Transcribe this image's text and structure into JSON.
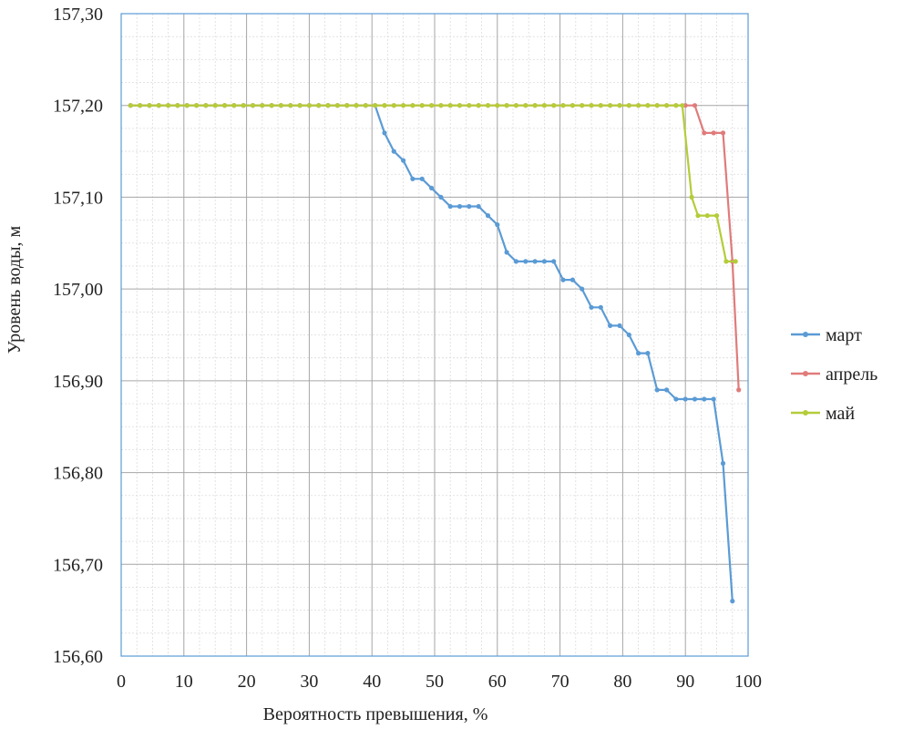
{
  "chart_data": {
    "type": "line",
    "title": "",
    "xlabel": "Вероятность превышения, %",
    "ylabel": "Уровень воды, м",
    "xlim": [
      0,
      100
    ],
    "ylim": [
      156.6,
      157.3
    ],
    "x_ticks": [
      0,
      10,
      20,
      30,
      40,
      50,
      60,
      70,
      80,
      90,
      100
    ],
    "x_tick_labels": [
      "0",
      "10",
      "20",
      "30",
      "40",
      "50",
      "60",
      "70",
      "80",
      "90",
      "100"
    ],
    "y_ticks": [
      156.6,
      156.7,
      156.8,
      156.9,
      157.0,
      157.1,
      157.2,
      157.3
    ],
    "y_tick_labels": [
      "156,60",
      "156,70",
      "156,80",
      "156,90",
      "157,00",
      "157,10",
      "157,20",
      "157,30"
    ],
    "grid": true,
    "legend_position": "right",
    "series": [
      {
        "name": "март",
        "color": "#5b9bd5",
        "points": [
          [
            1.5,
            157.2
          ],
          [
            3,
            157.2
          ],
          [
            4.5,
            157.2
          ],
          [
            6,
            157.2
          ],
          [
            7.5,
            157.2
          ],
          [
            9,
            157.2
          ],
          [
            10.5,
            157.2
          ],
          [
            12,
            157.2
          ],
          [
            13.5,
            157.2
          ],
          [
            15,
            157.2
          ],
          [
            16.5,
            157.2
          ],
          [
            18,
            157.2
          ],
          [
            19.5,
            157.2
          ],
          [
            21,
            157.2
          ],
          [
            22.5,
            157.2
          ],
          [
            24,
            157.2
          ],
          [
            25.5,
            157.2
          ],
          [
            27,
            157.2
          ],
          [
            28.5,
            157.2
          ],
          [
            30,
            157.2
          ],
          [
            31.5,
            157.2
          ],
          [
            33,
            157.2
          ],
          [
            34.5,
            157.2
          ],
          [
            36,
            157.2
          ],
          [
            37.5,
            157.2
          ],
          [
            39,
            157.2
          ],
          [
            40.5,
            157.2
          ],
          [
            42,
            157.17
          ],
          [
            43.5,
            157.15
          ],
          [
            45,
            157.14
          ],
          [
            46.5,
            157.12
          ],
          [
            48,
            157.12
          ],
          [
            49.5,
            157.11
          ],
          [
            51,
            157.1
          ],
          [
            52.5,
            157.09
          ],
          [
            54,
            157.09
          ],
          [
            55.5,
            157.09
          ],
          [
            57,
            157.09
          ],
          [
            58.5,
            157.08
          ],
          [
            60,
            157.07
          ],
          [
            61.5,
            157.04
          ],
          [
            63,
            157.03
          ],
          [
            64.5,
            157.03
          ],
          [
            66,
            157.03
          ],
          [
            67.5,
            157.03
          ],
          [
            69,
            157.03
          ],
          [
            70.5,
            157.01
          ],
          [
            72,
            157.01
          ],
          [
            73.5,
            157.0
          ],
          [
            75,
            156.98
          ],
          [
            76.5,
            156.98
          ],
          [
            78,
            156.96
          ],
          [
            79.5,
            156.96
          ],
          [
            81,
            156.95
          ],
          [
            82.5,
            156.93
          ],
          [
            84,
            156.93
          ],
          [
            85.5,
            156.89
          ],
          [
            87,
            156.89
          ],
          [
            88.5,
            156.88
          ],
          [
            90,
            156.88
          ],
          [
            91.5,
            156.88
          ],
          [
            93,
            156.88
          ],
          [
            94.5,
            156.88
          ],
          [
            96,
            156.81
          ],
          [
            97.5,
            156.66
          ]
        ]
      },
      {
        "name": "апрель",
        "color": "#e07b7b",
        "points": [
          [
            1.5,
            157.2
          ],
          [
            3,
            157.2
          ],
          [
            4.5,
            157.2
          ],
          [
            6,
            157.2
          ],
          [
            7.5,
            157.2
          ],
          [
            9,
            157.2
          ],
          [
            10.5,
            157.2
          ],
          [
            12,
            157.2
          ],
          [
            13.5,
            157.2
          ],
          [
            15,
            157.2
          ],
          [
            16.5,
            157.2
          ],
          [
            18,
            157.2
          ],
          [
            19.5,
            157.2
          ],
          [
            21,
            157.2
          ],
          [
            22.5,
            157.2
          ],
          [
            24,
            157.2
          ],
          [
            25.5,
            157.2
          ],
          [
            27,
            157.2
          ],
          [
            28.5,
            157.2
          ],
          [
            30,
            157.2
          ],
          [
            31.5,
            157.2
          ],
          [
            33,
            157.2
          ],
          [
            34.5,
            157.2
          ],
          [
            36,
            157.2
          ],
          [
            37.5,
            157.2
          ],
          [
            39,
            157.2
          ],
          [
            40.5,
            157.2
          ],
          [
            42,
            157.2
          ],
          [
            43.5,
            157.2
          ],
          [
            45,
            157.2
          ],
          [
            46.5,
            157.2
          ],
          [
            48,
            157.2
          ],
          [
            49.5,
            157.2
          ],
          [
            51,
            157.2
          ],
          [
            52.5,
            157.2
          ],
          [
            54,
            157.2
          ],
          [
            55.5,
            157.2
          ],
          [
            57,
            157.2
          ],
          [
            58.5,
            157.2
          ],
          [
            60,
            157.2
          ],
          [
            61.5,
            157.2
          ],
          [
            63,
            157.2
          ],
          [
            64.5,
            157.2
          ],
          [
            66,
            157.2
          ],
          [
            67.5,
            157.2
          ],
          [
            69,
            157.2
          ],
          [
            70.5,
            157.2
          ],
          [
            72,
            157.2
          ],
          [
            73.5,
            157.2
          ],
          [
            75,
            157.2
          ],
          [
            76.5,
            157.2
          ],
          [
            78,
            157.2
          ],
          [
            79.5,
            157.2
          ],
          [
            81,
            157.2
          ],
          [
            82.5,
            157.2
          ],
          [
            84,
            157.2
          ],
          [
            85.5,
            157.2
          ],
          [
            87,
            157.2
          ],
          [
            88.5,
            157.2
          ],
          [
            90,
            157.2
          ],
          [
            91.5,
            157.2
          ],
          [
            93,
            157.17
          ],
          [
            94.5,
            157.17
          ],
          [
            96,
            157.17
          ],
          [
            97.5,
            157.03
          ],
          [
            98.5,
            156.89
          ]
        ]
      },
      {
        "name": "май",
        "color": "#b5cc3a",
        "points": [
          [
            1.5,
            157.2
          ],
          [
            3,
            157.2
          ],
          [
            4.5,
            157.2
          ],
          [
            6,
            157.2
          ],
          [
            7.5,
            157.2
          ],
          [
            9,
            157.2
          ],
          [
            10.5,
            157.2
          ],
          [
            12,
            157.2
          ],
          [
            13.5,
            157.2
          ],
          [
            15,
            157.2
          ],
          [
            16.5,
            157.2
          ],
          [
            18,
            157.2
          ],
          [
            19.5,
            157.2
          ],
          [
            21,
            157.2
          ],
          [
            22.5,
            157.2
          ],
          [
            24,
            157.2
          ],
          [
            25.5,
            157.2
          ],
          [
            27,
            157.2
          ],
          [
            28.5,
            157.2
          ],
          [
            30,
            157.2
          ],
          [
            31.5,
            157.2
          ],
          [
            33,
            157.2
          ],
          [
            34.5,
            157.2
          ],
          [
            36,
            157.2
          ],
          [
            37.5,
            157.2
          ],
          [
            39,
            157.2
          ],
          [
            40.5,
            157.2
          ],
          [
            42,
            157.2
          ],
          [
            43.5,
            157.2
          ],
          [
            45,
            157.2
          ],
          [
            46.5,
            157.2
          ],
          [
            48,
            157.2
          ],
          [
            49.5,
            157.2
          ],
          [
            51,
            157.2
          ],
          [
            52.5,
            157.2
          ],
          [
            54,
            157.2
          ],
          [
            55.5,
            157.2
          ],
          [
            57,
            157.2
          ],
          [
            58.5,
            157.2
          ],
          [
            60,
            157.2
          ],
          [
            61.5,
            157.2
          ],
          [
            63,
            157.2
          ],
          [
            64.5,
            157.2
          ],
          [
            66,
            157.2
          ],
          [
            67.5,
            157.2
          ],
          [
            69,
            157.2
          ],
          [
            70.5,
            157.2
          ],
          [
            72,
            157.2
          ],
          [
            73.5,
            157.2
          ],
          [
            75,
            157.2
          ],
          [
            76.5,
            157.2
          ],
          [
            78,
            157.2
          ],
          [
            79.5,
            157.2
          ],
          [
            81,
            157.2
          ],
          [
            82.5,
            157.2
          ],
          [
            84,
            157.2
          ],
          [
            85.5,
            157.2
          ],
          [
            87,
            157.2
          ],
          [
            88.5,
            157.2
          ],
          [
            89.5,
            157.2
          ],
          [
            91,
            157.1
          ],
          [
            92,
            157.08
          ],
          [
            93.5,
            157.08
          ],
          [
            95,
            157.08
          ],
          [
            96.5,
            157.03
          ],
          [
            98,
            157.03
          ]
        ]
      }
    ]
  }
}
